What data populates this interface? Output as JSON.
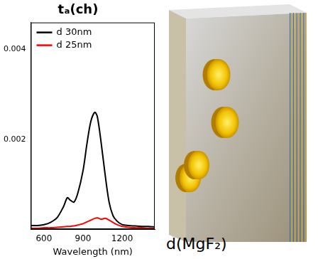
{
  "chart_data": {
    "type": "line",
    "title": "tₐ(ch)",
    "x_label": "Wavelength (nm)",
    "x": [
      500,
      550,
      600,
      650,
      700,
      750,
      780,
      800,
      830,
      860,
      900,
      930,
      960,
      990,
      1010,
      1040,
      1070,
      1100,
      1130,
      1160,
      1200,
      1250,
      1300,
      1350,
      1400,
      1450
    ],
    "series": [
      {
        "name": "d 30nm",
        "color": "#000000",
        "values": [
          8e-05,
          8e-05,
          0.0001,
          0.00015,
          0.00025,
          0.0005,
          0.0007,
          0.00065,
          0.0006,
          0.0008,
          0.0013,
          0.0019,
          0.0024,
          0.0026,
          0.0025,
          0.0019,
          0.0012,
          0.0006,
          0.0003,
          0.00018,
          0.0001,
          8e-05,
          7e-05,
          6e-05,
          6e-05,
          5e-05
        ]
      },
      {
        "name": "d 25nm",
        "color": "#ff0000",
        "values": [
          2e-05,
          2e-05,
          3e-05,
          3e-05,
          4e-05,
          5e-05,
          6e-05,
          6e-05,
          7e-05,
          9e-05,
          0.00012,
          0.00016,
          0.0002,
          0.00024,
          0.00025,
          0.00022,
          0.00024,
          0.0002,
          0.00015,
          0.0001,
          6e-05,
          4e-05,
          3e-05,
          3e-05,
          2e-05,
          2e-05
        ]
      }
    ],
    "xlim": [
      500,
      1450
    ],
    "xticks": [
      600,
      900,
      1200
    ],
    "ylim": [
      0,
      0.0046
    ],
    "yticks": [
      0.002,
      0.004
    ],
    "grid": false,
    "legend": "top-left"
  },
  "illustration": {
    "label": "d(MgF₂)"
  }
}
